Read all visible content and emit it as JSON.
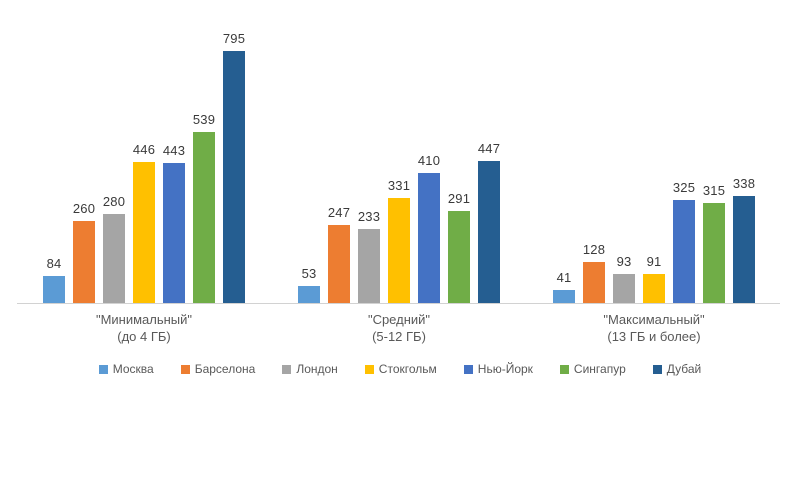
{
  "chart_data": {
    "type": "bar",
    "title": "",
    "xlabel": "",
    "ylabel": "",
    "categories": [
      "\"Минимальный\"",
      "\"Средний\"",
      "\"Максимальный\""
    ],
    "category_sublabels": [
      "(до 4 ГБ)",
      "(5-12 ГБ)",
      "(13 ГБ и более)"
    ],
    "series": [
      {
        "name": "Москва",
        "color": "#5B9BD5",
        "values": [
          84,
          53,
          41
        ]
      },
      {
        "name": "Барселона",
        "color": "#ED7D31",
        "values": [
          260,
          247,
          128
        ]
      },
      {
        "name": "Лондон",
        "color": "#A5A5A5",
        "values": [
          280,
          233,
          93
        ]
      },
      {
        "name": "Стокгольм",
        "color": "#FFC000",
        "values": [
          446,
          331,
          91
        ]
      },
      {
        "name": "Нью-Йорк",
        "color": "#4472C4",
        "values": [
          443,
          410,
          325
        ]
      },
      {
        "name": "Сингапур",
        "color": "#70AD47",
        "values": [
          539,
          291,
          315
        ]
      },
      {
        "name": "Дубай",
        "color": "#255E91",
        "values": [
          795,
          447,
          338
        ]
      }
    ],
    "ylim": [
      0,
      795
    ],
    "grid": false,
    "data_labels": true,
    "legend_position": "bottom",
    "axis_line_color": "#d2d2d2",
    "value_label_color": "#3a3a3a",
    "category_label_color": "#595959",
    "background_color": "#ffffff"
  }
}
